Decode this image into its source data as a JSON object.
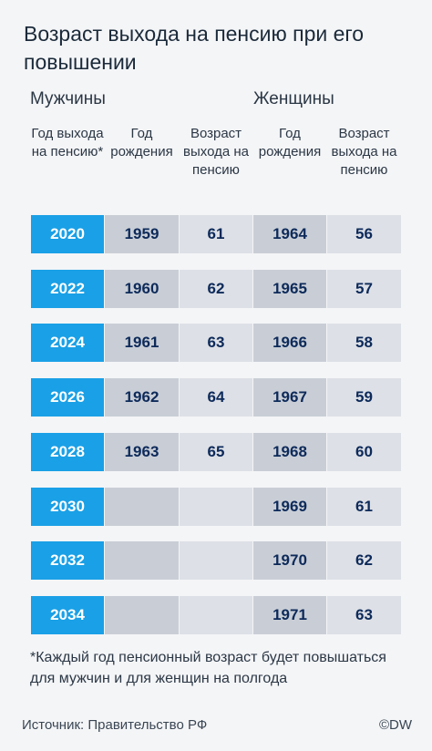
{
  "title": "Возраст выхода на пенсию при его повышении",
  "groups": [
    "Мужчины",
    "Женщины"
  ],
  "columns": [
    "Год выхода на пенсию*",
    "Год рождения",
    "Возраст выхода на пенсию",
    "Год рождения",
    "Возраст выхода на пенсию"
  ],
  "rows": [
    [
      2020,
      1959,
      61,
      1964,
      56
    ],
    [
      2022,
      1960,
      62,
      1965,
      57
    ],
    [
      2024,
      1961,
      63,
      1966,
      58
    ],
    [
      2026,
      1962,
      64,
      1967,
      59
    ],
    [
      2028,
      1963,
      65,
      1968,
      60
    ],
    [
      2030,
      null,
      null,
      1969,
      61
    ],
    [
      2032,
      null,
      null,
      1970,
      62
    ],
    [
      2034,
      null,
      null,
      1971,
      63
    ]
  ],
  "footnote": "*Каждый год пенсионный возраст будет повышаться для мужчин и для женщин на полгода",
  "source": "Источник: Правительство РФ",
  "credit": "©DW"
}
